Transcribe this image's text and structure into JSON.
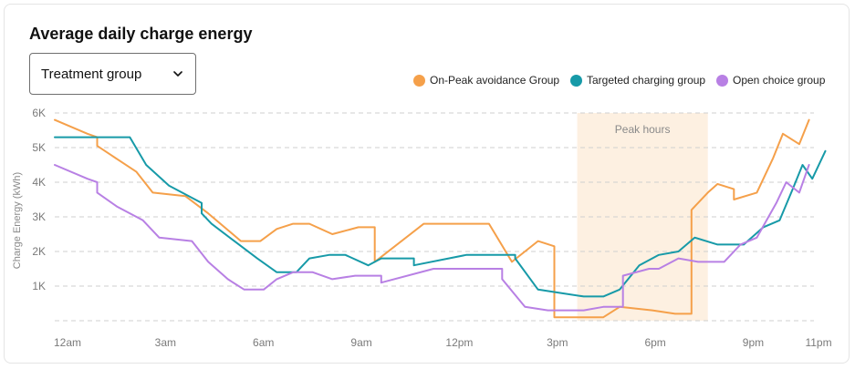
{
  "header": {
    "title": "Average daily charge energy"
  },
  "filter": {
    "label": "Treatment group"
  },
  "legend": [
    {
      "label": "On-Peak avoidance Group",
      "color": "#f5a04a"
    },
    {
      "label": "Targeted charging group",
      "color": "#179aa8"
    },
    {
      "label": "Open choice group",
      "color": "#b880e4"
    }
  ],
  "chart_data": {
    "type": "line",
    "title": "Average daily charge energy",
    "xlabel": "",
    "ylabel": "Charge Energy (kWh)",
    "ylim": [
      0,
      6000
    ],
    "y_ticks": [
      {
        "value": 1000,
        "label": "1K"
      },
      {
        "value": 2000,
        "label": "2K"
      },
      {
        "value": 3000,
        "label": "3K"
      },
      {
        "value": 4000,
        "label": "4K"
      },
      {
        "value": 5000,
        "label": "5K"
      },
      {
        "value": 6000,
        "label": "6K"
      }
    ],
    "x_range": [
      0,
      23.25
    ],
    "x_ticks": [
      {
        "value": 0,
        "label": "12am"
      },
      {
        "value": 3,
        "label": "3am"
      },
      {
        "value": 6,
        "label": "6am"
      },
      {
        "value": 9,
        "label": "9am"
      },
      {
        "value": 12,
        "label": "12pm"
      },
      {
        "value": 15,
        "label": "3pm"
      },
      {
        "value": 18,
        "label": "6pm"
      },
      {
        "value": 21,
        "label": "9pm"
      },
      {
        "value": 23,
        "label": "11pm"
      }
    ],
    "annotations": [
      {
        "type": "band",
        "label": "Peak hours",
        "x_start": 16,
        "x_end": 20,
        "color": "#fdf0e1"
      }
    ],
    "series": [
      {
        "name": "On-Peak avoidance Group",
        "color": "#f5a04a",
        "points": [
          [
            0,
            5800
          ],
          [
            1,
            5400
          ],
          [
            1.3,
            5300
          ],
          [
            1.3,
            5050
          ],
          [
            1.7,
            4800
          ],
          [
            2.5,
            4300
          ],
          [
            3,
            3700
          ],
          [
            4,
            3600
          ],
          [
            4.7,
            3100
          ],
          [
            5.7,
            2300
          ],
          [
            6.3,
            2300
          ],
          [
            6.8,
            2650
          ],
          [
            7.3,
            2800
          ],
          [
            7.8,
            2800
          ],
          [
            8.5,
            2500
          ],
          [
            9.3,
            2700
          ],
          [
            9.8,
            2700
          ],
          [
            9.8,
            1700
          ],
          [
            11.3,
            2800
          ],
          [
            12.7,
            2800
          ],
          [
            13.3,
            2800
          ],
          [
            14,
            1700
          ],
          [
            14.8,
            2300
          ],
          [
            15.3,
            2150
          ],
          [
            15.3,
            100
          ],
          [
            15.8,
            100
          ],
          [
            16.3,
            100
          ],
          [
            16.8,
            100
          ],
          [
            17.3,
            400
          ],
          [
            18.3,
            300
          ],
          [
            19,
            200
          ],
          [
            19.5,
            200
          ],
          [
            19.5,
            3200
          ],
          [
            20,
            3700
          ],
          [
            20.3,
            3950
          ],
          [
            20.8,
            3800
          ],
          [
            20.8,
            3500
          ],
          [
            21.5,
            3700
          ],
          [
            22,
            4700
          ],
          [
            22.3,
            5400
          ],
          [
            22.8,
            5100
          ],
          [
            23.1,
            5800
          ]
        ]
      },
      {
        "name": "Targeted charging group",
        "color": "#179aa8",
        "points": [
          [
            0,
            5300
          ],
          [
            1,
            5300
          ],
          [
            2,
            5300
          ],
          [
            2.3,
            5300
          ],
          [
            2.8,
            4500
          ],
          [
            3.5,
            3900
          ],
          [
            4.5,
            3400
          ],
          [
            4.5,
            3100
          ],
          [
            4.8,
            2800
          ],
          [
            5.5,
            2300
          ],
          [
            6.2,
            1800
          ],
          [
            6.8,
            1400
          ],
          [
            7.4,
            1400
          ],
          [
            7.8,
            1800
          ],
          [
            8.4,
            1900
          ],
          [
            8.9,
            1900
          ],
          [
            9.6,
            1600
          ],
          [
            10,
            1800
          ],
          [
            10.5,
            1800
          ],
          [
            11,
            1800
          ],
          [
            11,
            1600
          ],
          [
            12.6,
            1900
          ],
          [
            14.1,
            1900
          ],
          [
            14.1,
            1800
          ],
          [
            14.8,
            900
          ],
          [
            15.5,
            800
          ],
          [
            16.2,
            700
          ],
          [
            16.8,
            700
          ],
          [
            17.3,
            900
          ],
          [
            17.9,
            1600
          ],
          [
            18.5,
            1900
          ],
          [
            19.1,
            2000
          ],
          [
            19.6,
            2400
          ],
          [
            20.3,
            2200
          ],
          [
            21.1,
            2200
          ],
          [
            21.7,
            2700
          ],
          [
            22.2,
            2900
          ],
          [
            22.6,
            3800
          ],
          [
            22.9,
            4500
          ],
          [
            23.2,
            4100
          ],
          [
            23.6,
            4900
          ]
        ]
      },
      {
        "name": "Open choice group",
        "color": "#b880e4",
        "points": [
          [
            0,
            4500
          ],
          [
            1,
            4100
          ],
          [
            1.3,
            4000
          ],
          [
            1.3,
            3700
          ],
          [
            1.9,
            3300
          ],
          [
            2.7,
            2900
          ],
          [
            3.2,
            2400
          ],
          [
            4.2,
            2300
          ],
          [
            4.7,
            1700
          ],
          [
            5.3,
            1200
          ],
          [
            5.8,
            900
          ],
          [
            6.4,
            900
          ],
          [
            6.8,
            1200
          ],
          [
            7.3,
            1400
          ],
          [
            7.9,
            1400
          ],
          [
            8.5,
            1200
          ],
          [
            9.2,
            1300
          ],
          [
            9.7,
            1300
          ],
          [
            10,
            1300
          ],
          [
            10,
            1100
          ],
          [
            11.6,
            1500
          ],
          [
            12.6,
            1500
          ],
          [
            13.7,
            1500
          ],
          [
            13.7,
            1200
          ],
          [
            14.4,
            400
          ],
          [
            15.1,
            300
          ],
          [
            15.8,
            300
          ],
          [
            16.2,
            300
          ],
          [
            16.8,
            400
          ],
          [
            17.4,
            400
          ],
          [
            17.4,
            1300
          ],
          [
            18.2,
            1500
          ],
          [
            18.5,
            1500
          ],
          [
            19.1,
            1800
          ],
          [
            19.7,
            1700
          ],
          [
            20.5,
            1700
          ],
          [
            21,
            2200
          ],
          [
            21.5,
            2400
          ],
          [
            22.1,
            3400
          ],
          [
            22.4,
            4000
          ],
          [
            22.8,
            3700
          ],
          [
            23.1,
            4500
          ]
        ]
      }
    ]
  }
}
